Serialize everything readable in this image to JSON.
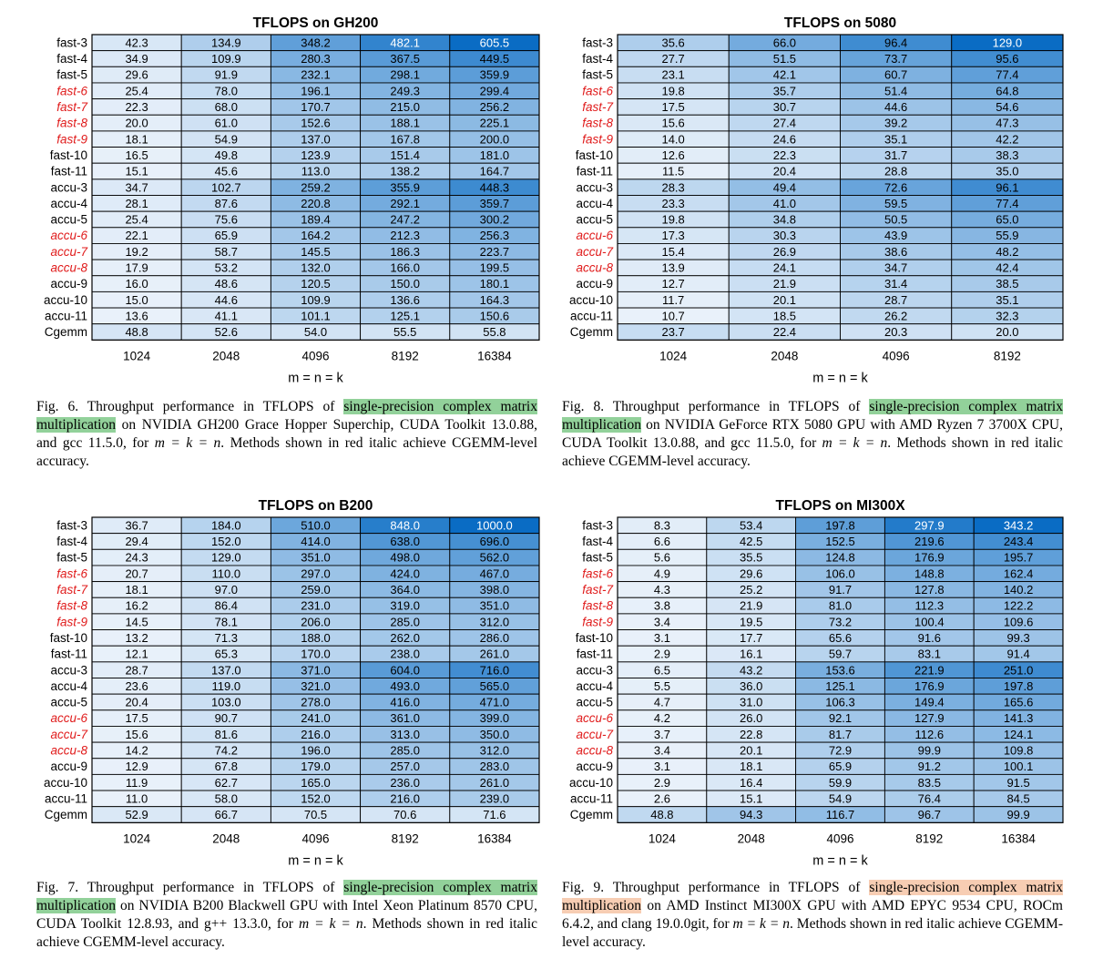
{
  "charts": [
    {
      "id": "gh200",
      "chart_data": {
        "type": "heatmap",
        "title": "TFLOPS on GH200",
        "xlabel": "m = n = k",
        "ylabel": "",
        "columns": [
          "1024",
          "2048",
          "4096",
          "8192",
          "16384"
        ],
        "rows": [
          {
            "label": "fast-3",
            "red": false,
            "values": [
              42.3,
              134.9,
              348.2,
              482.1,
              605.5
            ]
          },
          {
            "label": "fast-4",
            "red": false,
            "values": [
              34.9,
              109.9,
              280.3,
              367.5,
              449.5
            ]
          },
          {
            "label": "fast-5",
            "red": false,
            "values": [
              29.6,
              91.9,
              232.1,
              298.1,
              359.9
            ]
          },
          {
            "label": "fast-6",
            "red": true,
            "values": [
              25.4,
              78.0,
              196.1,
              249.3,
              299.4
            ]
          },
          {
            "label": "fast-7",
            "red": true,
            "values": [
              22.3,
              68.0,
              170.7,
              215.0,
              256.2
            ]
          },
          {
            "label": "fast-8",
            "red": true,
            "values": [
              20.0,
              61.0,
              152.6,
              188.1,
              225.1
            ]
          },
          {
            "label": "fast-9",
            "red": true,
            "values": [
              18.1,
              54.9,
              137.0,
              167.8,
              200.0
            ]
          },
          {
            "label": "fast-10",
            "red": false,
            "values": [
              16.5,
              49.8,
              123.9,
              151.4,
              181.0
            ]
          },
          {
            "label": "fast-11",
            "red": false,
            "values": [
              15.1,
              45.6,
              113.0,
              138.2,
              164.7
            ]
          },
          {
            "label": "accu-3",
            "red": false,
            "values": [
              34.7,
              102.7,
              259.2,
              355.9,
              448.3
            ]
          },
          {
            "label": "accu-4",
            "red": false,
            "values": [
              28.1,
              87.6,
              220.8,
              292.1,
              359.7
            ]
          },
          {
            "label": "accu-5",
            "red": false,
            "values": [
              25.4,
              75.6,
              189.4,
              247.2,
              300.2
            ]
          },
          {
            "label": "accu-6",
            "red": true,
            "values": [
              22.1,
              65.9,
              164.2,
              212.3,
              256.3
            ]
          },
          {
            "label": "accu-7",
            "red": true,
            "values": [
              19.2,
              58.7,
              145.5,
              186.3,
              223.7
            ]
          },
          {
            "label": "accu-8",
            "red": true,
            "values": [
              17.9,
              53.2,
              132.0,
              166.0,
              199.5
            ]
          },
          {
            "label": "accu-9",
            "red": false,
            "values": [
              16.0,
              48.6,
              120.5,
              150.0,
              180.1
            ]
          },
          {
            "label": "accu-10",
            "red": false,
            "values": [
              15.0,
              44.6,
              109.9,
              136.6,
              164.3
            ]
          },
          {
            "label": "accu-11",
            "red": false,
            "values": [
              13.6,
              41.1,
              101.1,
              125.1,
              150.6
            ]
          },
          {
            "label": "Cgemm",
            "red": false,
            "values": [
              48.8,
              52.6,
              54.0,
              55.5,
              55.8
            ]
          }
        ]
      },
      "caption": {
        "lead": "Fig. 6.  Throughput performance in TFLOPS of ",
        "highlight": "single-precision complex matrix multiplication",
        "highlight_color": "#92d19a",
        "rest": " on NVIDIA GH200 Grace Hopper Superchip, CUDA Toolkit 13.0.88, and gcc 11.5.0, for ",
        "math": "m = k = n",
        "tail": ". Methods shown in red italic achieve CGEMM-level accuracy."
      }
    },
    {
      "id": "rtx5080",
      "chart_data": {
        "type": "heatmap",
        "title": "TFLOPS on 5080",
        "xlabel": "m = n = k",
        "ylabel": "",
        "columns": [
          "1024",
          "2048",
          "4096",
          "8192"
        ],
        "rows": [
          {
            "label": "fast-3",
            "red": false,
            "values": [
              35.6,
              66.0,
              96.4,
              129.0
            ]
          },
          {
            "label": "fast-4",
            "red": false,
            "values": [
              27.7,
              51.5,
              73.7,
              95.6
            ]
          },
          {
            "label": "fast-5",
            "red": false,
            "values": [
              23.1,
              42.1,
              60.7,
              77.4
            ]
          },
          {
            "label": "fast-6",
            "red": true,
            "values": [
              19.8,
              35.7,
              51.4,
              64.8
            ]
          },
          {
            "label": "fast-7",
            "red": true,
            "values": [
              17.5,
              30.7,
              44.6,
              54.6
            ]
          },
          {
            "label": "fast-8",
            "red": true,
            "values": [
              15.6,
              27.4,
              39.2,
              47.3
            ]
          },
          {
            "label": "fast-9",
            "red": true,
            "values": [
              14.0,
              24.6,
              35.1,
              42.2
            ]
          },
          {
            "label": "fast-10",
            "red": false,
            "values": [
              12.6,
              22.3,
              31.7,
              38.3
            ]
          },
          {
            "label": "fast-11",
            "red": false,
            "values": [
              11.5,
              20.4,
              28.8,
              35.0
            ]
          },
          {
            "label": "accu-3",
            "red": false,
            "values": [
              28.3,
              49.4,
              72.6,
              96.1
            ]
          },
          {
            "label": "accu-4",
            "red": false,
            "values": [
              23.3,
              41.0,
              59.5,
              77.4
            ]
          },
          {
            "label": "accu-5",
            "red": false,
            "values": [
              19.8,
              34.8,
              50.5,
              65.0
            ]
          },
          {
            "label": "accu-6",
            "red": true,
            "values": [
              17.3,
              30.3,
              43.9,
              55.9
            ]
          },
          {
            "label": "accu-7",
            "red": true,
            "values": [
              15.4,
              26.9,
              38.6,
              48.2
            ]
          },
          {
            "label": "accu-8",
            "red": true,
            "values": [
              13.9,
              24.1,
              34.7,
              42.4
            ]
          },
          {
            "label": "accu-9",
            "red": false,
            "values": [
              12.7,
              21.9,
              31.4,
              38.5
            ]
          },
          {
            "label": "accu-10",
            "red": false,
            "values": [
              11.7,
              20.1,
              28.7,
              35.1
            ]
          },
          {
            "label": "accu-11",
            "red": false,
            "values": [
              10.7,
              18.5,
              26.2,
              32.3
            ]
          },
          {
            "label": "Cgemm",
            "red": false,
            "values": [
              23.7,
              22.4,
              20.3,
              20.0
            ]
          }
        ]
      },
      "caption": {
        "lead": "Fig. 8.  Throughput performance in TFLOPS of ",
        "highlight": "single-precision complex matrix multiplication",
        "highlight_color": "#92d19a",
        "rest": " on NVIDIA GeForce RTX 5080 GPU with AMD Ryzen 7 3700X CPU, CUDA Toolkit 13.0.88, and gcc 11.5.0, for ",
        "math": "m = k = n",
        "tail": ". Methods shown in red italic achieve CGEMM-level accuracy."
      }
    },
    {
      "id": "b200",
      "chart_data": {
        "type": "heatmap",
        "title": "TFLOPS on B200",
        "xlabel": "m = n = k",
        "ylabel": "",
        "columns": [
          "1024",
          "2048",
          "4096",
          "8192",
          "16384"
        ],
        "rows": [
          {
            "label": "fast-3",
            "red": false,
            "values": [
              36.7,
              184.0,
              510.0,
              848.0,
              1000.0
            ]
          },
          {
            "label": "fast-4",
            "red": false,
            "values": [
              29.4,
              152.0,
              414.0,
              638.0,
              696.0
            ]
          },
          {
            "label": "fast-5",
            "red": false,
            "values": [
              24.3,
              129.0,
              351.0,
              498.0,
              562.0
            ]
          },
          {
            "label": "fast-6",
            "red": true,
            "values": [
              20.7,
              110.0,
              297.0,
              424.0,
              467.0
            ]
          },
          {
            "label": "fast-7",
            "red": true,
            "values": [
              18.1,
              97.0,
              259.0,
              364.0,
              398.0
            ]
          },
          {
            "label": "fast-8",
            "red": true,
            "values": [
              16.2,
              86.4,
              231.0,
              319.0,
              351.0
            ]
          },
          {
            "label": "fast-9",
            "red": true,
            "values": [
              14.5,
              78.1,
              206.0,
              285.0,
              312.0
            ]
          },
          {
            "label": "fast-10",
            "red": false,
            "values": [
              13.2,
              71.3,
              188.0,
              262.0,
              286.0
            ]
          },
          {
            "label": "fast-11",
            "red": false,
            "values": [
              12.1,
              65.3,
              170.0,
              238.0,
              261.0
            ]
          },
          {
            "label": "accu-3",
            "red": false,
            "values": [
              28.7,
              137.0,
              371.0,
              604.0,
              716.0
            ]
          },
          {
            "label": "accu-4",
            "red": false,
            "values": [
              23.6,
              119.0,
              321.0,
              493.0,
              565.0
            ]
          },
          {
            "label": "accu-5",
            "red": false,
            "values": [
              20.4,
              103.0,
              278.0,
              416.0,
              471.0
            ]
          },
          {
            "label": "accu-6",
            "red": true,
            "values": [
              17.5,
              90.7,
              241.0,
              361.0,
              399.0
            ]
          },
          {
            "label": "accu-7",
            "red": true,
            "values": [
              15.6,
              81.6,
              216.0,
              313.0,
              350.0
            ]
          },
          {
            "label": "accu-8",
            "red": true,
            "values": [
              14.2,
              74.2,
              196.0,
              285.0,
              312.0
            ]
          },
          {
            "label": "accu-9",
            "red": false,
            "values": [
              12.9,
              67.8,
              179.0,
              257.0,
              283.0
            ]
          },
          {
            "label": "accu-10",
            "red": false,
            "values": [
              11.9,
              62.7,
              165.0,
              236.0,
              261.0
            ]
          },
          {
            "label": "accu-11",
            "red": false,
            "values": [
              11.0,
              58.0,
              152.0,
              216.0,
              239.0
            ]
          },
          {
            "label": "Cgemm",
            "red": false,
            "values": [
              52.9,
              66.7,
              70.5,
              70.6,
              71.6
            ]
          }
        ]
      },
      "caption": {
        "lead": "Fig. 7.  Throughput performance in TFLOPS of ",
        "highlight": "single-precision complex matrix multiplication",
        "highlight_color": "#92d19a",
        "rest": " on NVIDIA B200 Blackwell GPU with Intel Xeon Platinum 8570 CPU, CUDA Toolkit 12.8.93, and g++ 13.3.0, for ",
        "math": "m = k = n",
        "tail": ". Methods shown in red italic achieve CGEMM-level accuracy."
      }
    },
    {
      "id": "mi300x",
      "chart_data": {
        "type": "heatmap",
        "title": "TFLOPS on MI300X",
        "xlabel": "m = n = k",
        "ylabel": "",
        "columns": [
          "1024",
          "2048",
          "4096",
          "8192",
          "16384"
        ],
        "rows": [
          {
            "label": "fast-3",
            "red": false,
            "values": [
              8.3,
              53.4,
              197.8,
              297.9,
              343.2
            ]
          },
          {
            "label": "fast-4",
            "red": false,
            "values": [
              6.6,
              42.5,
              152.5,
              219.6,
              243.4
            ]
          },
          {
            "label": "fast-5",
            "red": false,
            "values": [
              5.6,
              35.5,
              124.8,
              176.9,
              195.7
            ]
          },
          {
            "label": "fast-6",
            "red": true,
            "values": [
              4.9,
              29.6,
              106.0,
              148.8,
              162.4
            ]
          },
          {
            "label": "fast-7",
            "red": true,
            "values": [
              4.3,
              25.2,
              91.7,
              127.8,
              140.2
            ]
          },
          {
            "label": "fast-8",
            "red": true,
            "values": [
              3.8,
              21.9,
              81.0,
              112.3,
              122.2
            ]
          },
          {
            "label": "fast-9",
            "red": true,
            "values": [
              3.4,
              19.5,
              73.2,
              100.4,
              109.6
            ]
          },
          {
            "label": "fast-10",
            "red": false,
            "values": [
              3.1,
              17.7,
              65.6,
              91.6,
              99.3
            ]
          },
          {
            "label": "fast-11",
            "red": false,
            "values": [
              2.9,
              16.1,
              59.7,
              83.1,
              91.4
            ]
          },
          {
            "label": "accu-3",
            "red": false,
            "values": [
              6.5,
              43.2,
              153.6,
              221.9,
              251.0
            ]
          },
          {
            "label": "accu-4",
            "red": false,
            "values": [
              5.5,
              36.0,
              125.1,
              176.9,
              197.8
            ]
          },
          {
            "label": "accu-5",
            "red": false,
            "values": [
              4.7,
              31.0,
              106.3,
              149.4,
              165.6
            ]
          },
          {
            "label": "accu-6",
            "red": true,
            "values": [
              4.2,
              26.0,
              92.1,
              127.9,
              141.3
            ]
          },
          {
            "label": "accu-7",
            "red": true,
            "values": [
              3.7,
              22.8,
              81.7,
              112.6,
              124.1
            ]
          },
          {
            "label": "accu-8",
            "red": true,
            "values": [
              3.4,
              20.1,
              72.9,
              99.9,
              109.8
            ]
          },
          {
            "label": "accu-9",
            "red": false,
            "values": [
              3.1,
              18.1,
              65.9,
              91.2,
              100.1
            ]
          },
          {
            "label": "accu-10",
            "red": false,
            "values": [
              2.9,
              16.4,
              59.9,
              83.5,
              91.5
            ]
          },
          {
            "label": "accu-11",
            "red": false,
            "values": [
              2.6,
              15.1,
              54.9,
              76.4,
              84.5
            ]
          },
          {
            "label": "Cgemm",
            "red": false,
            "values": [
              48.8,
              94.3,
              116.7,
              96.7,
              99.9
            ]
          }
        ]
      },
      "caption": {
        "lead": "Fig. 9.  Throughput performance in TFLOPS of ",
        "highlight": "single-precision complex matrix multiplication",
        "highlight_color": "#f7cdb3",
        "rest": " on AMD Instinct MI300X GPU with AMD EPYC 9534 CPU, ROCm 6.4.2, and clang 19.0.0git, for ",
        "math": "m = k = n",
        "tail": ". Methods shown in red italic achieve CGEMM-level accuracy."
      }
    }
  ],
  "colors": {
    "low": "#e9f1fa",
    "high": "#0a6cc4",
    "red_label": "#e01b1b"
  }
}
